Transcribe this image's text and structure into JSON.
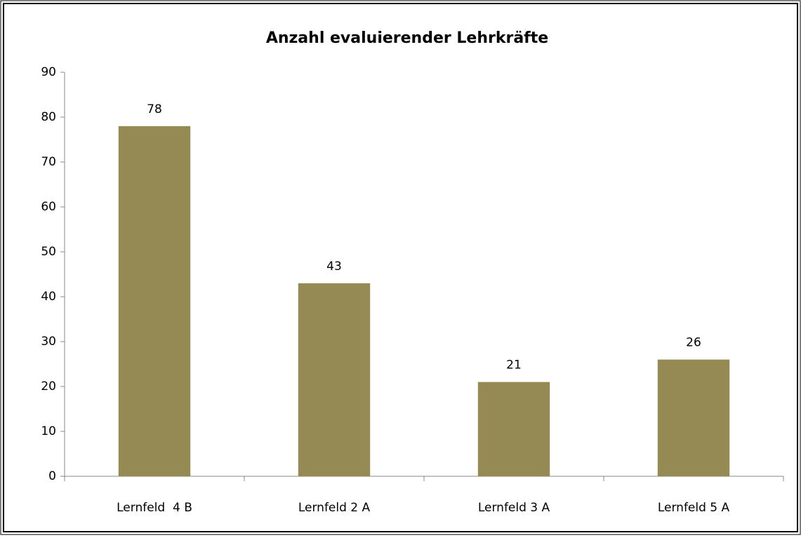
{
  "chart_data": {
    "type": "bar",
    "title": "Anzahl evaluierender Lehrkräfte",
    "categories": [
      "Lernfeld  4 B",
      "Lernfeld 2 A",
      "Lernfeld 3 A",
      "Lernfeld 5 A"
    ],
    "values": [
      78,
      43,
      21,
      26
    ],
    "color": "#968a54",
    "ylim": [
      0,
      90
    ],
    "yticks": [
      0,
      10,
      20,
      30,
      40,
      50,
      60,
      70,
      80,
      90
    ],
    "grid": false
  }
}
